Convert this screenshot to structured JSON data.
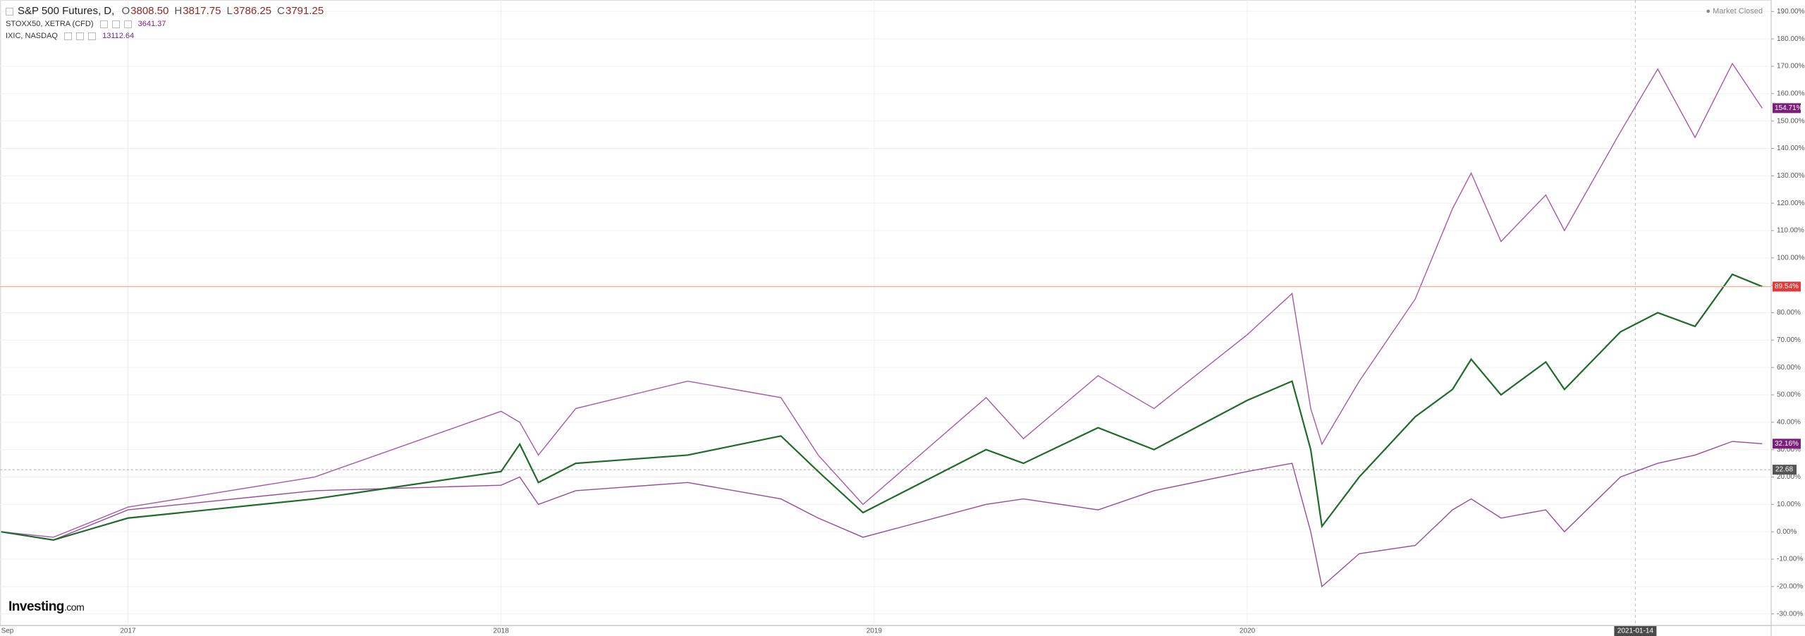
{
  "chart_data": {
    "type": "line",
    "status": "Market Closed",
    "logo": "Investing",
    "logo_suffix": ".com",
    "ohlc": [
      {
        "label": "O",
        "value": "3808.50"
      },
      {
        "label": "H",
        "value": "3817.75"
      },
      {
        "label": "L",
        "value": "3786.25"
      },
      {
        "label": "C",
        "value": "3791.25"
      }
    ],
    "x": [
      2016.66,
      2016.8,
      2017.0,
      2017.5,
      2018.0,
      2018.05,
      2018.1,
      2018.2,
      2018.5,
      2018.75,
      2018.85,
      2018.97,
      2019.3,
      2019.4,
      2019.6,
      2019.75,
      2020.0,
      2020.12,
      2020.17,
      2020.2,
      2020.3,
      2020.45,
      2020.55,
      2020.6,
      2020.68,
      2020.8,
      2020.85,
      2021.0,
      2021.1,
      2021.2,
      2021.3,
      2021.38
    ],
    "series": [
      {
        "name": "S&P 500 Futures, D,",
        "color": "#1e6b2a",
        "label_color": "#e53935",
        "values": [
          0,
          -3,
          5,
          12,
          22,
          32,
          18,
          25,
          28,
          35,
          22,
          7,
          30,
          25,
          38,
          30,
          48,
          55,
          30,
          2,
          20,
          42,
          52,
          63,
          50,
          62,
          52,
          73,
          80,
          75,
          94,
          89.54
        ],
        "value_labels": [
          null,
          null,
          null,
          null,
          null,
          null,
          null,
          null,
          null,
          null,
          null,
          null,
          null,
          null,
          null,
          null,
          null,
          null,
          null,
          null,
          null,
          null,
          null,
          null,
          null,
          null,
          null,
          null,
          null,
          null,
          null,
          "89.54%"
        ]
      },
      {
        "name": "STOXX50, XETRA (CFD)",
        "last_price": "3641.37",
        "color": "#9b4a9b",
        "label_color": "#7b1f7b",
        "values": [
          0,
          -3,
          8,
          15,
          17,
          20,
          10,
          15,
          18,
          12,
          5,
          -2,
          10,
          12,
          8,
          15,
          22,
          25,
          0,
          -20,
          -8,
          -5,
          8,
          12,
          5,
          8,
          0,
          20,
          25,
          28,
          33,
          32.16
        ],
        "value_labels": [
          null,
          null,
          null,
          null,
          null,
          null,
          null,
          null,
          null,
          null,
          null,
          null,
          null,
          null,
          null,
          null,
          null,
          null,
          null,
          null,
          null,
          null,
          null,
          null,
          null,
          null,
          null,
          null,
          null,
          null,
          null,
          "32.16%"
        ]
      },
      {
        "name": "IXIC, NASDAQ",
        "last_price": "13112.64",
        "color": "#a858a8",
        "label_color": "#7b1f7b",
        "values": [
          0,
          -2,
          9,
          20,
          44,
          40,
          28,
          45,
          55,
          49,
          28,
          10,
          49,
          34,
          57,
          45,
          72,
          87,
          45,
          32,
          55,
          85,
          118,
          131,
          106,
          123,
          110,
          146,
          169,
          144,
          171,
          154.71
        ],
        "value_labels": [
          null,
          null,
          null,
          null,
          null,
          null,
          null,
          null,
          null,
          null,
          null,
          null,
          null,
          null,
          null,
          null,
          null,
          null,
          null,
          null,
          null,
          null,
          null,
          null,
          null,
          null,
          null,
          null,
          null,
          null,
          null,
          "154.71%"
        ]
      }
    ],
    "price_line": 22.68,
    "xlim": [
      2016.657,
      2021.404
    ],
    "xticks": [
      {
        "value": 2016.66,
        "label": "Sep"
      },
      2017,
      2018,
      2019,
      2020
    ],
    "crosshair_x": {
      "value": 2021.04,
      "label": "2021-01-14"
    },
    "ylim": [
      -34.2,
      194.2
    ],
    "yticks": [
      {
        "value": -30,
        "label": "-30.00%"
      },
      {
        "value": -20,
        "label": "-20.00%"
      },
      {
        "value": -10,
        "label": "-10.00%"
      },
      {
        "value": 0,
        "label": "0.00%"
      },
      {
        "value": 10,
        "label": "10.00%"
      },
      {
        "value": 20,
        "label": "20.00%"
      },
      {
        "value": 30,
        "label": "30.00%"
      },
      {
        "value": 40,
        "label": "40.00%"
      },
      {
        "value": 50,
        "label": "50.00%"
      },
      {
        "value": 60,
        "label": "60.00%"
      },
      {
        "value": 70,
        "label": "70.00%"
      },
      {
        "value": 80,
        "label": "80.00%"
      },
      {
        "value": 90,
        "label": "90.00%"
      },
      {
        "value": 100,
        "label": "100.00%"
      },
      {
        "value": 110,
        "label": "110.00%"
      },
      {
        "value": 120,
        "label": "120.00%"
      },
      {
        "value": 130,
        "label": "130.00%"
      },
      {
        "value": 140,
        "label": "140.00%"
      },
      {
        "value": 150,
        "label": "150.00%"
      },
      {
        "value": 160,
        "label": "160.00%"
      },
      {
        "value": 170,
        "label": "170.00%"
      },
      {
        "value": 180,
        "label": "180.00%"
      },
      {
        "value": 190,
        "label": "190.00%"
      }
    ],
    "grid": true
  }
}
